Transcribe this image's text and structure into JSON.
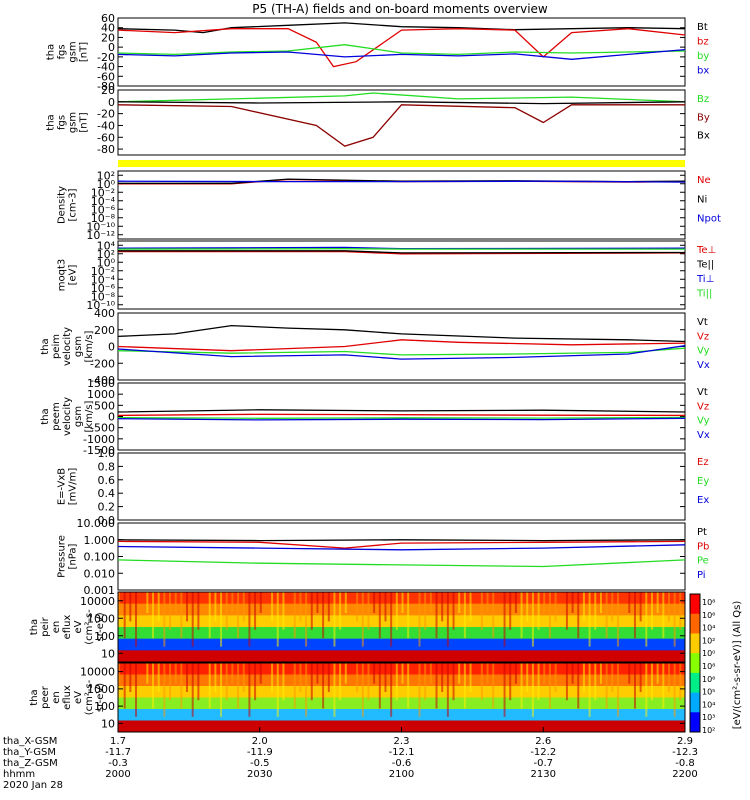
{
  "title": "P5 (TH-A) fields and on-board moments overview",
  "colors": {
    "black": "#000000",
    "red": "#e00000",
    "green": "#22dd22",
    "blue": "#0000dd",
    "dark_red": "#8b0000",
    "yellow": "#ffff00"
  },
  "chart_data": [
    {
      "type": "line",
      "ylabel_lines": [
        "tha",
        "fgs",
        "gsm",
        "[nT]"
      ],
      "ylim": [
        -80,
        60
      ],
      "tick_labels": [
        "60",
        "40",
        "20",
        "0",
        "-20",
        "-40",
        "-60",
        "-80"
      ],
      "tick_values": [
        60,
        40,
        20,
        0,
        -20,
        -40,
        -60,
        -80
      ],
      "series": [
        {
          "name": "Bt",
          "color": "#000000",
          "x": [
            0,
            0.1,
            0.15,
            0.2,
            0.3,
            0.4,
            0.5,
            0.6,
            0.7,
            0.8,
            0.9,
            1.0
          ],
          "values": [
            38,
            35,
            30,
            40,
            45,
            50,
            42,
            40,
            36,
            38,
            40,
            38
          ]
        },
        {
          "name": "bz",
          "color": "#e00000",
          "x": [
            0,
            0.1,
            0.2,
            0.3,
            0.35,
            0.38,
            0.42,
            0.5,
            0.6,
            0.7,
            0.75,
            0.8,
            0.9,
            1.0
          ],
          "values": [
            35,
            30,
            38,
            38,
            10,
            -40,
            -30,
            35,
            38,
            35,
            -20,
            30,
            38,
            25
          ]
        },
        {
          "name": "by",
          "color": "#22dd22",
          "x": [
            0,
            0.1,
            0.2,
            0.3,
            0.4,
            0.5,
            0.6,
            0.7,
            0.8,
            0.9,
            1.0
          ],
          "values": [
            -12,
            -15,
            -10,
            -8,
            5,
            -12,
            -15,
            -10,
            -12,
            -10,
            -8
          ]
        },
        {
          "name": "bx",
          "color": "#0000dd",
          "x": [
            0,
            0.1,
            0.2,
            0.3,
            0.4,
            0.5,
            0.6,
            0.7,
            0.8,
            0.9,
            1.0
          ],
          "values": [
            -15,
            -18,
            -12,
            -10,
            -20,
            -15,
            -18,
            -14,
            -25,
            -15,
            -5
          ]
        }
      ]
    },
    {
      "type": "line",
      "ylabel_lines": [
        "tha",
        "fgs",
        "gsm",
        "[nT]"
      ],
      "ylim": [
        -90,
        20
      ],
      "tick_labels": [
        "20",
        "0",
        "-20",
        "-40",
        "-60",
        "-80"
      ],
      "tick_values": [
        20,
        0,
        -20,
        -40,
        -60,
        -80
      ],
      "series": [
        {
          "name": "Bz",
          "color": "#22dd22",
          "x": [
            0,
            0.2,
            0.4,
            0.45,
            0.6,
            0.8,
            1.0
          ],
          "values": [
            0,
            5,
            10,
            15,
            5,
            8,
            0
          ]
        },
        {
          "name": "By",
          "color": "#8b0000",
          "x": [
            0,
            0.2,
            0.35,
            0.4,
            0.45,
            0.5,
            0.7,
            0.75,
            0.8,
            1.0
          ],
          "values": [
            -5,
            -8,
            -40,
            -75,
            -60,
            -5,
            -10,
            -35,
            -5,
            -5
          ]
        },
        {
          "name": "Bx",
          "color": "#000000",
          "x": [
            0,
            0.25,
            0.5,
            0.75,
            1.0
          ],
          "values": [
            0,
            -2,
            0,
            -3,
            0
          ]
        }
      ]
    },
    {
      "type": "line",
      "ylabel_lines": [
        "Density",
        "[cm-3]"
      ],
      "ylim_log": [
        -13,
        3
      ],
      "tick_labels": [
        "10²",
        "10⁰",
        "10⁻²",
        "10⁻⁴",
        "10⁻⁶",
        "10⁻⁸",
        "10⁻¹⁰",
        "10⁻¹²"
      ],
      "tick_values": [
        2,
        0,
        -2,
        -4,
        -6,
        -8,
        -10,
        -12
      ],
      "series": [
        {
          "name": "Ne",
          "color": "#e00000",
          "x": [
            0,
            0.2,
            0.3,
            0.5,
            0.7,
            0.9,
            1.0
          ],
          "values": [
            0,
            0,
            1,
            0.5,
            0.6,
            0.4,
            0.5
          ]
        },
        {
          "name": "Ni",
          "color": "#000000",
          "x": [
            0,
            0.2,
            0.3,
            0.5,
            0.7,
            0.9,
            1.0
          ],
          "values": [
            0.1,
            0.1,
            1.1,
            0.6,
            0.7,
            0.5,
            0.6
          ]
        },
        {
          "name": "Npot",
          "color": "#0000dd",
          "x": [
            0,
            0.25,
            0.5,
            0.75,
            1.0
          ],
          "values": [
            0.6,
            0.5,
            0.5,
            0.6,
            0.4
          ]
        }
      ]
    },
    {
      "type": "line",
      "ylabel_lines": [
        "moqt3",
        "[eV]"
      ],
      "ylim_log": [
        -11,
        5
      ],
      "tick_labels": [
        "10⁴",
        "10²",
        "10⁰",
        "10⁻²",
        "10⁻⁴",
        "10⁻⁶",
        "10⁻⁸",
        "10⁻¹⁰"
      ],
      "tick_values": [
        4,
        2,
        0,
        -2,
        -4,
        -6,
        -8,
        -10
      ],
      "series": [
        {
          "name": "Te⊥",
          "color": "#e00000",
          "x": [
            0,
            0.4,
            0.5,
            1.0
          ],
          "values": [
            2.5,
            2.5,
            2.0,
            2.2
          ]
        },
        {
          "name": "Te||",
          "color": "#000000",
          "x": [
            0,
            0.4,
            0.5,
            1.0
          ],
          "values": [
            2.7,
            2.7,
            2.2,
            2.3
          ]
        },
        {
          "name": "Ti⊥",
          "color": "#0000dd",
          "x": [
            0,
            0.4,
            0.5,
            1.0
          ],
          "values": [
            3.3,
            3.5,
            3.2,
            3.3
          ]
        },
        {
          "name": "Ti||",
          "color": "#22dd22",
          "x": [
            0,
            0.4,
            0.5,
            1.0
          ],
          "values": [
            3.1,
            3.2,
            3.1,
            3.1
          ]
        }
      ]
    },
    {
      "type": "line",
      "ylabel_lines": [
        "tha",
        "peim",
        "velocity",
        "gsm",
        "[km/s]"
      ],
      "ylim": [
        -400,
        400
      ],
      "tick_labels": [
        "400",
        "200",
        "0",
        "-200",
        "-400"
      ],
      "tick_values": [
        400,
        200,
        0,
        -200,
        -400
      ],
      "series": [
        {
          "name": "Vt",
          "color": "#000000",
          "x": [
            0,
            0.1,
            0.2,
            0.3,
            0.4,
            0.5,
            0.7,
            0.9,
            1.0
          ],
          "values": [
            120,
            150,
            250,
            220,
            200,
            150,
            100,
            80,
            60
          ]
        },
        {
          "name": "Vz",
          "color": "#e00000",
          "x": [
            0,
            0.2,
            0.4,
            0.5,
            0.6,
            0.8,
            1.0
          ],
          "values": [
            0,
            -50,
            0,
            80,
            50,
            20,
            40
          ]
        },
        {
          "name": "Vy",
          "color": "#22dd22",
          "x": [
            0,
            0.2,
            0.4,
            0.5,
            0.7,
            0.9,
            1.0
          ],
          "values": [
            -50,
            -80,
            -60,
            -100,
            -90,
            -70,
            -20
          ]
        },
        {
          "name": "Vx",
          "color": "#0000dd",
          "x": [
            0,
            0.2,
            0.4,
            0.5,
            0.7,
            0.9,
            1.0
          ],
          "values": [
            -30,
            -120,
            -100,
            -150,
            -130,
            -90,
            10
          ]
        }
      ]
    },
    {
      "type": "line",
      "ylabel_lines": [
        "tha",
        "peem",
        "velocity",
        "gsm",
        "[km/s]"
      ],
      "ylim": [
        -1500,
        1500
      ],
      "tick_labels": [
        "1500",
        "1000",
        "500",
        "0",
        "-500",
        "-1000",
        "-1500"
      ],
      "tick_values": [
        1500,
        1000,
        500,
        0,
        -500,
        -1000,
        -1500
      ],
      "series": [
        {
          "name": "Vt",
          "color": "#000000",
          "x": [
            0,
            0.25,
            0.5,
            0.75,
            1.0
          ],
          "values": [
            200,
            300,
            250,
            280,
            200
          ]
        },
        {
          "name": "Vz",
          "color": "#e00000",
          "x": [
            0,
            0.25,
            0.5,
            0.75,
            1.0
          ],
          "values": [
            50,
            100,
            80,
            60,
            50
          ]
        },
        {
          "name": "Vy",
          "color": "#22dd22",
          "x": [
            0,
            0.25,
            0.5,
            0.75,
            1.0
          ],
          "values": [
            -50,
            -80,
            -60,
            -70,
            -40
          ]
        },
        {
          "name": "Vx",
          "color": "#0000dd",
          "x": [
            0,
            0.25,
            0.5,
            0.75,
            1.0
          ],
          "values": [
            -100,
            -150,
            -120,
            -140,
            -80
          ]
        }
      ]
    },
    {
      "type": "line",
      "ylabel_lines": [
        "E=-VxB",
        "[mV/m]"
      ],
      "ylim": [
        0,
        1
      ],
      "tick_labels": [
        "1.0",
        "0.8",
        "0.6",
        "0.4",
        "0.2",
        "0.0"
      ],
      "tick_values": [
        1.0,
        0.8,
        0.6,
        0.4,
        0.2,
        0.0
      ],
      "series": [
        {
          "name": "Ez",
          "color": "#e00000",
          "x": [],
          "values": []
        },
        {
          "name": "Ey",
          "color": "#22dd22",
          "x": [],
          "values": []
        },
        {
          "name": "Ex",
          "color": "#0000dd",
          "x": [],
          "values": []
        }
      ]
    },
    {
      "type": "line",
      "ylabel_lines": [
        "Pressure",
        "[nPa]"
      ],
      "ylim_log": [
        -3,
        1
      ],
      "tick_labels": [
        "10.000",
        "1.000",
        "0.100",
        "0.010",
        "0.001"
      ],
      "tick_values": [
        1,
        0,
        -1,
        -2,
        -3
      ],
      "series": [
        {
          "name": "Pt",
          "color": "#000000",
          "x": [
            0,
            0.25,
            0.5,
            0.75,
            1.0
          ],
          "values": [
            0.0,
            -0.05,
            0.0,
            -0.05,
            0.0
          ]
        },
        {
          "name": "Pb",
          "color": "#e00000",
          "x": [
            0,
            0.25,
            0.4,
            0.5,
            0.75,
            1.0
          ],
          "values": [
            -0.1,
            -0.15,
            -0.5,
            -0.2,
            -0.15,
            -0.1
          ]
        },
        {
          "name": "Pe",
          "color": "#22dd22",
          "x": [
            0,
            0.25,
            0.5,
            0.75,
            1.0
          ],
          "values": [
            -1.2,
            -1.4,
            -1.5,
            -1.6,
            -1.2
          ]
        },
        {
          "name": "Pi",
          "color": "#0000dd",
          "x": [
            0,
            0.25,
            0.5,
            0.75,
            1.0
          ],
          "values": [
            -0.4,
            -0.5,
            -0.6,
            -0.5,
            -0.3
          ]
        }
      ]
    },
    {
      "type": "heatmap",
      "ylabel_lines": [
        "tha",
        "peir",
        "en",
        "eflux",
        "eV",
        "(cm²-s-",
        "sr-eV)"
      ],
      "tick_labels": [
        "10000",
        "1000",
        "100",
        "10"
      ],
      "tick_values": [
        4,
        3,
        2,
        1
      ]
    },
    {
      "type": "heatmap",
      "ylabel_lines": [
        "tha",
        "peer",
        "en",
        "eflux",
        "eV",
        "(cm²-s-",
        "sr-eV)"
      ],
      "tick_labels": [
        "10000",
        "1000",
        "100",
        "10"
      ],
      "tick_values": [
        4,
        3,
        2,
        1
      ]
    }
  ],
  "colorbar": {
    "tick_labels": [
      "10⁸",
      "10⁶",
      "10⁴",
      "10²",
      "10⁰",
      "10⁸",
      "10⁶",
      "10⁵",
      "10⁴",
      "10³",
      "10²"
    ],
    "unit": "[eV/(cm²-s-sr-eV)] (All Qs)"
  },
  "x_axis": {
    "row_labels": [
      "tha_X-GSM",
      "tha_Y-GSM",
      "tha_Z-GSM",
      "hhmm",
      "2020 Jan 28"
    ],
    "columns": [
      {
        "values": [
          "1.7",
          "-11.7",
          "-0.3",
          "2000"
        ]
      },
      {
        "values": [
          "2.0",
          "-11.9",
          "-0.5",
          "2030"
        ]
      },
      {
        "values": [
          "2.3",
          "-12.1",
          "-0.6",
          "2100"
        ]
      },
      {
        "values": [
          "2.6",
          "-12.2",
          "-0.7",
          "2130"
        ]
      },
      {
        "values": [
          "2.9",
          "-12.3",
          "-0.8",
          "2200"
        ]
      }
    ]
  }
}
